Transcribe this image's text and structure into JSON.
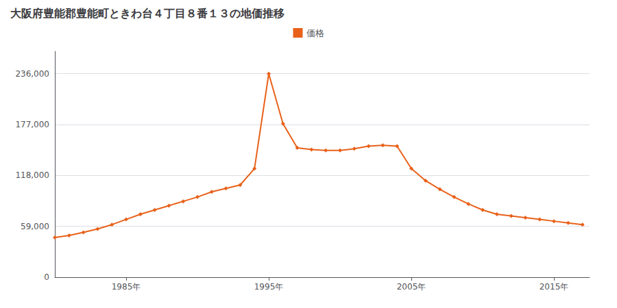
{
  "chart_data": {
    "type": "line",
    "title": "大阪府豊能郡豊能町ときわ台４丁目８番１３の地価推移",
    "x": [
      1980,
      1981,
      1982,
      1983,
      1984,
      1985,
      1986,
      1987,
      1988,
      1989,
      1990,
      1991,
      1992,
      1993,
      1994,
      1995,
      1996,
      1997,
      1998,
      1999,
      2000,
      2001,
      2002,
      2003,
      2004,
      2005,
      2006,
      2007,
      2008,
      2009,
      2010,
      2011,
      2012,
      2013,
      2014,
      2015,
      2016,
      2017
    ],
    "series": [
      {
        "name": "価格",
        "color": "#e8611a",
        "marker": "diamond",
        "values": [
          46000,
          48500,
          52000,
          56000,
          61000,
          67000,
          73000,
          78000,
          83000,
          88000,
          93000,
          99000,
          103000,
          107000,
          126000,
          236000,
          178000,
          150000,
          148000,
          147000,
          147000,
          149000,
          152000,
          153000,
          152000,
          126000,
          112000,
          102000,
          93000,
          85000,
          78000,
          73000,
          71000,
          69000,
          67000,
          65000,
          63000,
          61000
        ]
      }
    ],
    "xlim": [
      1980.0,
      2017.5
    ],
    "xticks": [
      {
        "value": 1985,
        "label": "1985年"
      },
      {
        "value": 1995,
        "label": "1995年"
      },
      {
        "value": 2005,
        "label": "2005年"
      },
      {
        "value": 2015,
        "label": "2015年"
      }
    ],
    "ylim": [
      0,
      262000
    ],
    "yticks": [
      0,
      {
        "value": 59000,
        "label": "59,000"
      },
      {
        "value": 118000,
        "label": "118,000"
      },
      {
        "value": 177000,
        "label": "177,000"
      },
      {
        "value": 236000,
        "label": "236,000"
      }
    ],
    "grid": true,
    "legend": "top"
  }
}
